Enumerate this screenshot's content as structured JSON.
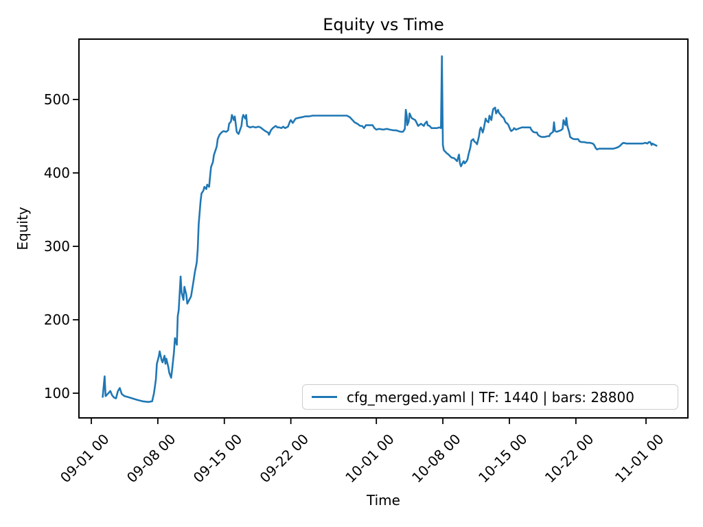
{
  "figure": {
    "title": "Equity vs Time",
    "xlabel": "Time",
    "ylabel": "Equity"
  },
  "legend": {
    "label": "cfg_merged.yaml | TF: 1440 | bars: 28800",
    "line_color": "#1f77b4"
  },
  "chart_data": {
    "type": "line",
    "title": "Equity vs Time",
    "xlabel": "Time",
    "ylabel": "Equity",
    "grid": false,
    "legend_position": "lower right",
    "x_ticks": {
      "labels": [
        "09-01 00",
        "09-08 00",
        "09-15 00",
        "09-22 00",
        "10-01 00",
        "10-08 00",
        "10-15 00",
        "10-22 00",
        "11-01 00"
      ],
      "days_from_sep1": [
        0,
        7,
        14,
        21,
        30,
        37,
        44,
        51,
        61
      ],
      "rotation_deg": 45
    },
    "y_ticks": [
      100,
      200,
      300,
      400,
      500
    ],
    "ylim": [
      66,
      582
    ],
    "xlim_days": [
      -1.3,
      67
    ],
    "series": [
      {
        "name": "cfg_merged.yaml | TF: 1440 | bars: 28800",
        "color": "#1f77b4",
        "points": [
          [
            1.2,
            95
          ],
          [
            1.4,
            123
          ],
          [
            1.5,
            96
          ],
          [
            1.8,
            100
          ],
          [
            2.0,
            103
          ],
          [
            2.2,
            97
          ],
          [
            2.4,
            94
          ],
          [
            2.6,
            93
          ],
          [
            2.8,
            103
          ],
          [
            3.0,
            107
          ],
          [
            3.2,
            99
          ],
          [
            3.5,
            96
          ],
          [
            3.8,
            95
          ],
          [
            4.3,
            93
          ],
          [
            4.8,
            91
          ],
          [
            5.4,
            89
          ],
          [
            6.0,
            88
          ],
          [
            6.4,
            89
          ],
          [
            6.6,
            100
          ],
          [
            6.8,
            119
          ],
          [
            6.9,
            140
          ],
          [
            7.1,
            150
          ],
          [
            7.2,
            157
          ],
          [
            7.4,
            145
          ],
          [
            7.5,
            142
          ],
          [
            7.7,
            151
          ],
          [
            7.8,
            140
          ],
          [
            7.9,
            147
          ],
          [
            8.1,
            136
          ],
          [
            8.2,
            128
          ],
          [
            8.4,
            121
          ],
          [
            8.5,
            131
          ],
          [
            8.7,
            156
          ],
          [
            8.8,
            175
          ],
          [
            9.0,
            166
          ],
          [
            9.1,
            205
          ],
          [
            9.2,
            213
          ],
          [
            9.4,
            259
          ],
          [
            9.5,
            237
          ],
          [
            9.7,
            227
          ],
          [
            9.8,
            245
          ],
          [
            10.0,
            234
          ],
          [
            10.1,
            222
          ],
          [
            10.3,
            227
          ],
          [
            10.5,
            232
          ],
          [
            10.7,
            248
          ],
          [
            10.9,
            265
          ],
          [
            11.1,
            278
          ],
          [
            11.2,
            296
          ],
          [
            11.3,
            330
          ],
          [
            11.5,
            362
          ],
          [
            11.6,
            372
          ],
          [
            11.8,
            376
          ],
          [
            11.9,
            381
          ],
          [
            12.1,
            378
          ],
          [
            12.2,
            384
          ],
          [
            12.4,
            381
          ],
          [
            12.5,
            395
          ],
          [
            12.6,
            408
          ],
          [
            12.8,
            415
          ],
          [
            12.9,
            424
          ],
          [
            13.2,
            436
          ],
          [
            13.3,
            446
          ],
          [
            13.5,
            452
          ],
          [
            13.7,
            455
          ],
          [
            13.9,
            457
          ],
          [
            14.2,
            456
          ],
          [
            14.4,
            458
          ],
          [
            14.5,
            467
          ],
          [
            14.7,
            470
          ],
          [
            14.8,
            479
          ],
          [
            15.0,
            472
          ],
          [
            15.1,
            477
          ],
          [
            15.3,
            456
          ],
          [
            15.5,
            453
          ],
          [
            15.8,
            464
          ],
          [
            15.9,
            475
          ],
          [
            16.0,
            479
          ],
          [
            16.2,
            474
          ],
          [
            16.3,
            479
          ],
          [
            16.4,
            464
          ],
          [
            16.7,
            462
          ],
          [
            17.0,
            463
          ],
          [
            17.3,
            462
          ],
          [
            17.6,
            463
          ],
          [
            17.8,
            462
          ],
          [
            18.1,
            459
          ],
          [
            18.3,
            457
          ],
          [
            18.6,
            455
          ],
          [
            18.7,
            452
          ],
          [
            18.9,
            458
          ],
          [
            19.1,
            461
          ],
          [
            19.4,
            464
          ],
          [
            19.6,
            462
          ],
          [
            19.8,
            462
          ],
          [
            20.0,
            461
          ],
          [
            20.2,
            463
          ],
          [
            20.4,
            461
          ],
          [
            20.7,
            463
          ],
          [
            20.9,
            470
          ],
          [
            21.0,
            472
          ],
          [
            21.2,
            468
          ],
          [
            21.5,
            474
          ],
          [
            21.8,
            475
          ],
          [
            22.2,
            476
          ],
          [
            22.5,
            477
          ],
          [
            22.9,
            477
          ],
          [
            23.3,
            478
          ],
          [
            24.0,
            478
          ],
          [
            24.7,
            478
          ],
          [
            25.4,
            478
          ],
          [
            26.2,
            478
          ],
          [
            26.9,
            478
          ],
          [
            27.2,
            476
          ],
          [
            27.5,
            472
          ],
          [
            27.7,
            469
          ],
          [
            28.0,
            467
          ],
          [
            28.3,
            464
          ],
          [
            28.5,
            464
          ],
          [
            28.7,
            461
          ],
          [
            28.9,
            465
          ],
          [
            29.3,
            465
          ],
          [
            29.6,
            465
          ],
          [
            29.8,
            461
          ],
          [
            30.0,
            459
          ],
          [
            30.3,
            460
          ],
          [
            30.7,
            459
          ],
          [
            31.1,
            460
          ],
          [
            31.4,
            459
          ],
          [
            31.8,
            458
          ],
          [
            32.1,
            458
          ],
          [
            32.3,
            457
          ],
          [
            32.6,
            456
          ],
          [
            32.8,
            456
          ],
          [
            33.0,
            460
          ],
          [
            33.1,
            486
          ],
          [
            33.2,
            478
          ],
          [
            33.25,
            465
          ],
          [
            33.4,
            470
          ],
          [
            33.5,
            481
          ],
          [
            33.7,
            475
          ],
          [
            33.8,
            474
          ],
          [
            34.1,
            472
          ],
          [
            34.4,
            464
          ],
          [
            34.7,
            467
          ],
          [
            34.8,
            466
          ],
          [
            35.0,
            464
          ],
          [
            35.1,
            467
          ],
          [
            35.3,
            470
          ],
          [
            35.4,
            465
          ],
          [
            35.6,
            464
          ],
          [
            35.8,
            461
          ],
          [
            36.2,
            461
          ],
          [
            36.4,
            461
          ],
          [
            36.6,
            462
          ],
          [
            36.8,
            461
          ],
          [
            36.9,
            559
          ],
          [
            37.0,
            438
          ],
          [
            37.1,
            431
          ],
          [
            37.4,
            427
          ],
          [
            37.6,
            425
          ],
          [
            37.9,
            421
          ],
          [
            38.2,
            420
          ],
          [
            38.5,
            416
          ],
          [
            38.7,
            425
          ],
          [
            38.8,
            413
          ],
          [
            38.9,
            409
          ],
          [
            39.1,
            414
          ],
          [
            39.2,
            416
          ],
          [
            39.3,
            413
          ],
          [
            39.5,
            416
          ],
          [
            39.6,
            419
          ],
          [
            39.7,
            425
          ],
          [
            39.9,
            435
          ],
          [
            40.0,
            444
          ],
          [
            40.2,
            446
          ],
          [
            40.3,
            443
          ],
          [
            40.5,
            441
          ],
          [
            40.6,
            439
          ],
          [
            40.8,
            450
          ],
          [
            40.9,
            459
          ],
          [
            41.0,
            462
          ],
          [
            41.2,
            455
          ],
          [
            41.3,
            460
          ],
          [
            41.5,
            474
          ],
          [
            41.6,
            471
          ],
          [
            41.8,
            469
          ],
          [
            41.9,
            478
          ],
          [
            42.1,
            472
          ],
          [
            42.2,
            480
          ],
          [
            42.3,
            487
          ],
          [
            42.5,
            489
          ],
          [
            42.6,
            481
          ],
          [
            42.8,
            486
          ],
          [
            42.9,
            482
          ],
          [
            43.1,
            479
          ],
          [
            43.2,
            477
          ],
          [
            43.4,
            475
          ],
          [
            43.5,
            472
          ],
          [
            43.6,
            469
          ],
          [
            43.8,
            467
          ],
          [
            43.9,
            465
          ],
          [
            44.1,
            459
          ],
          [
            44.2,
            457
          ],
          [
            44.4,
            459
          ],
          [
            44.5,
            461
          ],
          [
            44.7,
            459
          ],
          [
            44.9,
            460
          ],
          [
            45.3,
            462
          ],
          [
            45.7,
            462
          ],
          [
            46.2,
            462
          ],
          [
            46.3,
            459
          ],
          [
            46.5,
            456
          ],
          [
            46.7,
            455
          ],
          [
            46.9,
            455
          ],
          [
            47.0,
            452
          ],
          [
            47.2,
            450
          ],
          [
            47.4,
            449
          ],
          [
            47.7,
            449
          ],
          [
            48.0,
            450
          ],
          [
            48.2,
            450
          ],
          [
            48.3,
            453
          ],
          [
            48.6,
            456
          ],
          [
            48.7,
            469
          ],
          [
            48.8,
            457
          ],
          [
            49.0,
            456
          ],
          [
            49.2,
            457
          ],
          [
            49.4,
            458
          ],
          [
            49.6,
            460
          ],
          [
            49.7,
            472
          ],
          [
            49.9,
            465
          ],
          [
            50.0,
            475
          ],
          [
            50.1,
            464
          ],
          [
            50.3,
            455
          ],
          [
            50.4,
            449
          ],
          [
            50.6,
            447
          ],
          [
            50.8,
            446
          ],
          [
            51.0,
            446
          ],
          [
            51.3,
            446
          ],
          [
            51.5,
            443
          ],
          [
            51.8,
            442
          ],
          [
            52.2,
            442
          ],
          [
            52.6,
            441
          ],
          [
            53.0,
            441
          ],
          [
            53.4,
            440
          ],
          [
            53.6,
            438
          ],
          [
            53.8,
            434
          ],
          [
            54.0,
            432
          ],
          [
            54.3,
            433
          ],
          [
            54.7,
            433
          ],
          [
            55.1,
            433
          ],
          [
            55.5,
            433
          ],
          [
            55.9,
            433
          ],
          [
            56.3,
            433
          ],
          [
            56.7,
            434
          ],
          [
            57.0,
            435
          ],
          [
            57.3,
            437
          ],
          [
            57.6,
            440
          ],
          [
            57.8,
            441
          ],
          [
            58.2,
            440
          ],
          [
            58.5,
            440
          ],
          [
            58.9,
            440
          ],
          [
            59.3,
            440
          ],
          [
            59.7,
            440
          ],
          [
            60.1,
            440
          ],
          [
            60.5,
            440
          ],
          [
            60.9,
            441
          ],
          [
            61.2,
            440
          ],
          [
            61.4,
            442
          ],
          [
            61.6,
            442
          ],
          [
            61.8,
            438
          ],
          [
            61.9,
            440
          ],
          [
            62.1,
            439
          ],
          [
            62.3,
            438
          ],
          [
            62.5,
            437
          ]
        ]
      }
    ]
  }
}
